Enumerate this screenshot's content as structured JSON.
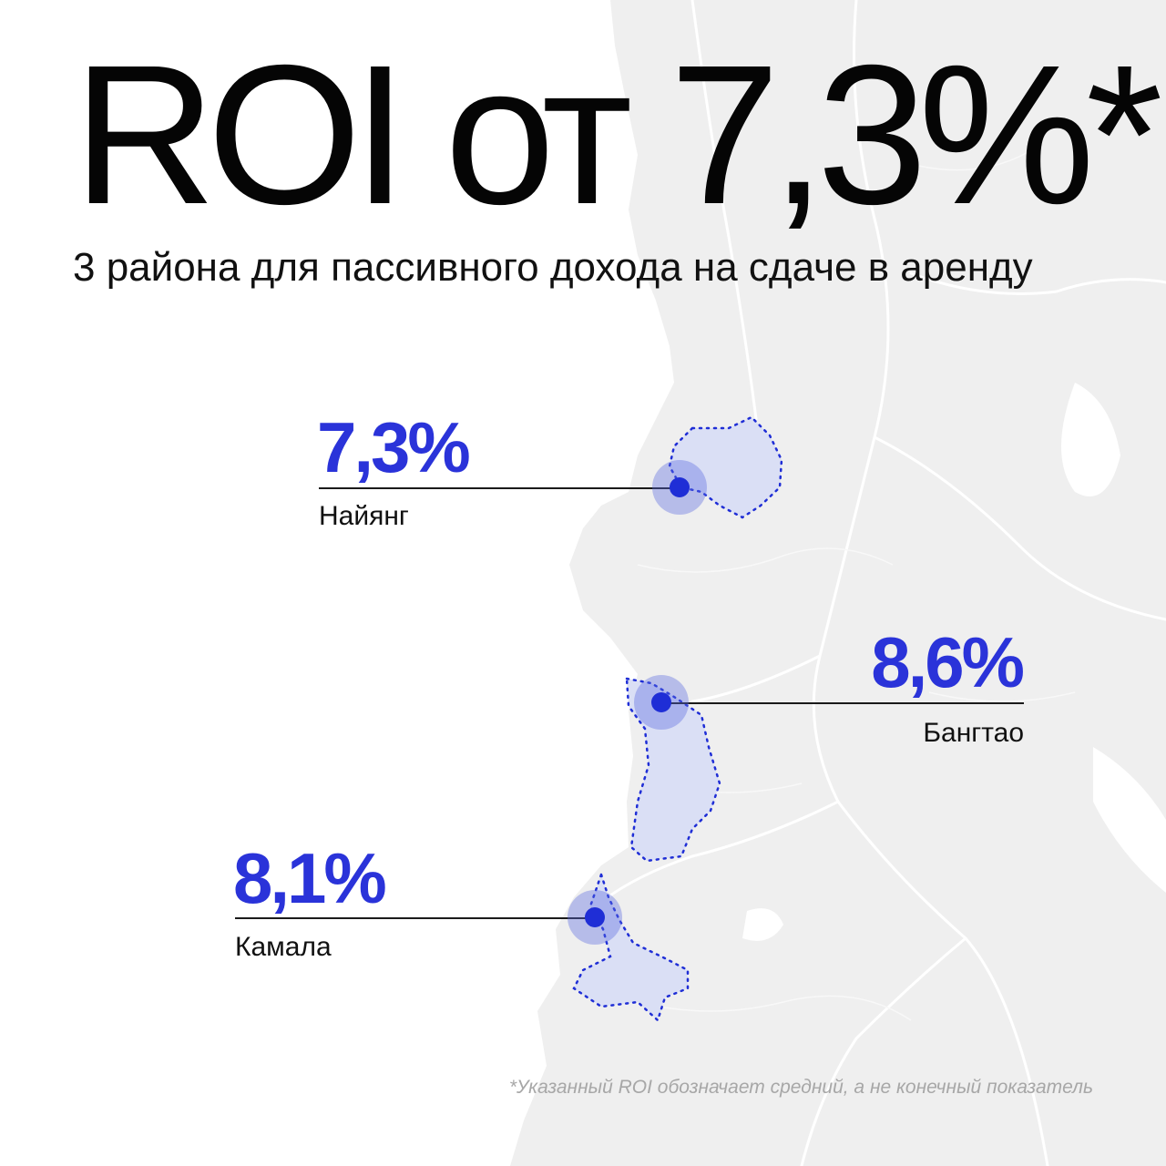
{
  "headline": "ROI от 7,3%*",
  "subtitle": "3 района для пассивного дохода на сдаче в аренду",
  "districts": [
    {
      "value": "7,3%",
      "name": "Найянг"
    },
    {
      "value": "8,6%",
      "name": "Бангтао"
    },
    {
      "value": "8,1%",
      "name": "Камала"
    }
  ],
  "footnote": "*Указанный ROI обозначает средний, а не конечный показатель",
  "colors": {
    "accent": "#2a33d9",
    "marker": "#1f2ed6",
    "area_fill": "#dadff5",
    "land": "#efefef",
    "text": "#0a0a0a",
    "footnote": "#a7a7a7"
  }
}
